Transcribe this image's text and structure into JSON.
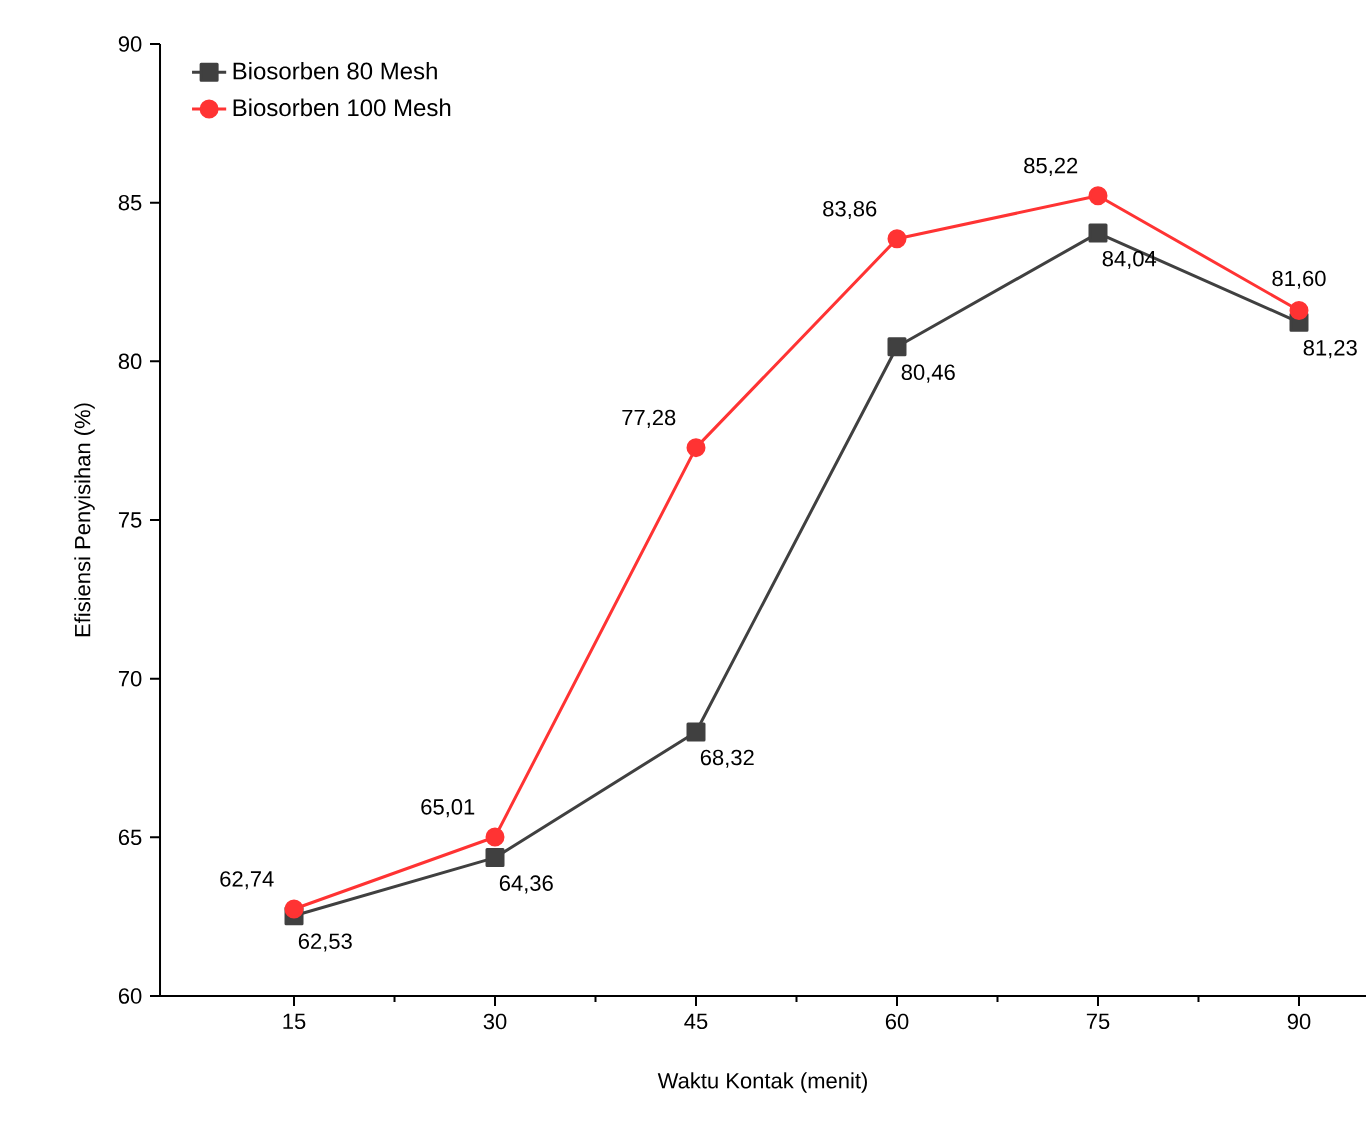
{
  "chart_data": {
    "type": "line",
    "xlabel": "Waktu Kontak (menit)",
    "ylabel": "Efisiensi Penyisihan (%)",
    "x": [
      15,
      30,
      45,
      60,
      75,
      90
    ],
    "xlim": [
      5,
      95
    ],
    "xticks": [
      15,
      30,
      45,
      60,
      75,
      90
    ],
    "ylim": [
      60,
      90
    ],
    "yticks": [
      60,
      65,
      70,
      75,
      80,
      85,
      90
    ],
    "grid": false,
    "legend": "top left",
    "series": [
      {
        "name": "Biosorben 80 Mesh",
        "color": "#404040",
        "marker": "square",
        "values": [
          62.53,
          64.36,
          68.32,
          80.46,
          84.04,
          81.23
        ],
        "value_labels": [
          "62,53",
          "64,36",
          "68,32",
          "80,46",
          "84,04",
          "81,23"
        ]
      },
      {
        "name": "Biosorben 100 Mesh",
        "color": "#ff3333",
        "marker": "circle",
        "values": [
          62.74,
          65.01,
          77.28,
          83.86,
          85.22,
          81.6
        ],
        "value_labels": [
          "62,74",
          "65,01",
          "77,28",
          "83,86",
          "85,22",
          "81,60"
        ]
      }
    ]
  }
}
